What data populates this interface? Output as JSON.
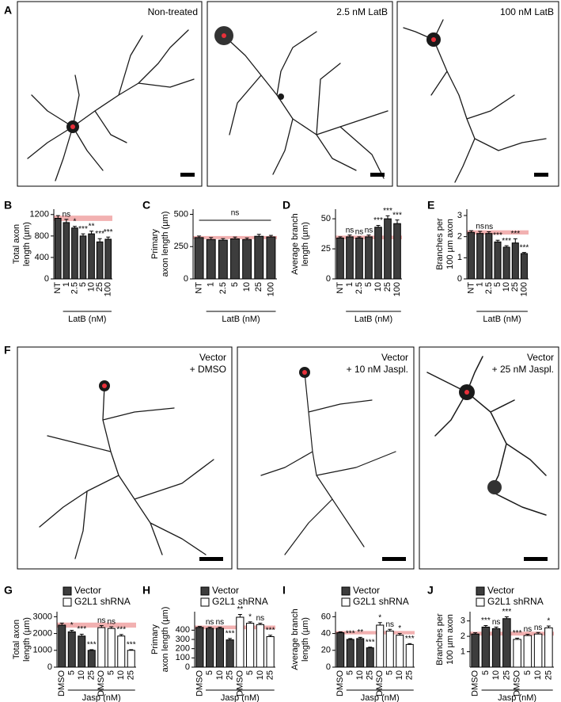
{
  "figure": {
    "A": {
      "label": "A",
      "images": [
        {
          "caption": "Non-treated"
        },
        {
          "caption": "2.5 nM LatB"
        },
        {
          "caption": "100 nM LatB"
        }
      ]
    },
    "F": {
      "label": "F",
      "images": [
        {
          "caption": [
            "Vector",
            "+ DMSO"
          ]
        },
        {
          "caption": [
            "Vector",
            "+ 10 nM Jaspl."
          ]
        },
        {
          "caption": [
            "Vector",
            "+ 25 nM Jaspl."
          ]
        }
      ]
    }
  },
  "chart_data": [
    {
      "panel": "B",
      "type": "bar",
      "ylabel": [
        "Total axon",
        "length (µm)"
      ],
      "xlabel": "LatB (nM)",
      "categories": [
        "NT",
        "1",
        "2.5",
        "5",
        "10",
        "25",
        "100"
      ],
      "values": [
        1130,
        1050,
        950,
        800,
        840,
        690,
        740
      ],
      "errors": [
        50,
        60,
        30,
        40,
        50,
        60,
        40
      ],
      "significance": [
        null,
        "ns",
        "*",
        "***",
        "**",
        "***",
        "***"
      ],
      "color": "#3d3d3d",
      "reference_band": [
        1080,
        1180
      ],
      "band_color": "#f0a3a3",
      "ylim": [
        0,
        1300
      ],
      "yticks": [
        0,
        400,
        800,
        1200
      ]
    },
    {
      "panel": "C",
      "type": "bar",
      "ylabel": [
        "Primary",
        "axon length (µm)"
      ],
      "xlabel": "LatB (nM)",
      "categories": [
        "NT",
        "1",
        "2.5",
        "5",
        "10",
        "25",
        "100"
      ],
      "values": [
        320,
        305,
        300,
        310,
        305,
        330,
        325
      ],
      "errors": [
        12,
        15,
        12,
        14,
        12,
        15,
        12
      ],
      "bracket_label": "ns",
      "color": "#3d3d3d",
      "reference_band": [
        308,
        332
      ],
      "band_color": "#f0a3a3",
      "ylim": [
        0,
        540
      ],
      "yticks": [
        0,
        250,
        500
      ]
    },
    {
      "panel": "D",
      "type": "bar",
      "ylabel": [
        "Average branch",
        "length (µm)"
      ],
      "xlabel": "LatB (nM)",
      "categories": [
        "NT",
        "1",
        "2.5",
        "5",
        "10",
        "25",
        "100"
      ],
      "values": [
        34,
        35,
        34,
        35,
        43,
        50,
        46
      ],
      "errors": [
        1,
        1.5,
        1,
        1.5,
        1.5,
        2.5,
        3
      ],
      "significance": [
        null,
        "ns",
        "ns",
        "ns",
        "***",
        "***",
        "***"
      ],
      "color": "#3d3d3d",
      "reference_band": [
        33,
        36
      ],
      "band_color": "#f0a3a3",
      "ylim": [
        0,
        58
      ],
      "yticks": [
        0,
        25,
        50
      ]
    },
    {
      "panel": "E",
      "type": "bar",
      "ylabel": [
        "Branches per",
        "100 µm axon"
      ],
      "xlabel": "LatB (nM)",
      "categories": [
        "NT",
        "1",
        "2.5",
        "5",
        "10",
        "25",
        "100"
      ],
      "values": [
        2.2,
        2.15,
        2.15,
        1.75,
        1.5,
        1.7,
        1.2
      ],
      "errors": [
        0.08,
        0.1,
        0.08,
        0.08,
        0.07,
        0.2,
        0.05
      ],
      "significance": [
        null,
        "ns",
        "ns",
        "***",
        "***",
        "***",
        "***"
      ],
      "color": "#3d3d3d",
      "reference_band": [
        2.1,
        2.3
      ],
      "band_color": "#f0a3a3",
      "ylim": [
        0,
        3.3
      ],
      "yticks": [
        0,
        1,
        2,
        3
      ]
    },
    {
      "panel": "G",
      "type": "bar",
      "ylabel": [
        "Total axon",
        "length (µm)"
      ],
      "xlabel": "Jasp (nM)",
      "categories": [
        "DMSO",
        "5",
        "10",
        "25",
        "DMSO",
        "5",
        "10",
        "25"
      ],
      "series": [
        {
          "name": "Vector",
          "color": "#3d3d3d",
          "values": [
            2500,
            2100,
            1850,
            1000,
            null,
            null,
            null,
            null
          ],
          "errors": [
            120,
            90,
            110,
            40,
            null,
            null,
            null,
            null
          ],
          "significance": [
            null,
            "*",
            "***",
            "***",
            null,
            null,
            null,
            null
          ]
        },
        {
          "name": "G2L1 shRNA",
          "color": "#ffffff",
          "values": [
            null,
            null,
            null,
            null,
            2350,
            2300,
            1850,
            1000
          ],
          "errors": [
            null,
            null,
            null,
            null,
            120,
            100,
            90,
            40
          ],
          "significance": [
            null,
            null,
            null,
            null,
            "ns",
            "ns",
            "***",
            "***"
          ]
        }
      ],
      "reference_band": [
        2350,
        2650
      ],
      "band_color": "#f0a3a3",
      "ylim": [
        0,
        3300
      ],
      "yticks": [
        0,
        1000,
        2000,
        3000
      ]
    },
    {
      "panel": "H",
      "type": "bar",
      "ylabel": [
        "Primary",
        "axon length (µm)"
      ],
      "xlabel": "Jasp (nM)",
      "categories": [
        "DMSO",
        "5",
        "10",
        "25",
        "DMSO",
        "5",
        "10",
        "25"
      ],
      "series": [
        {
          "name": "Vector",
          "color": "#3d3d3d",
          "values": [
            430,
            420,
            420,
            295,
            null,
            null,
            null,
            null
          ],
          "errors": [
            10,
            12,
            12,
            15,
            null,
            null,
            null,
            null
          ],
          "significance": [
            null,
            "ns",
            "ns",
            "***",
            null,
            null,
            null,
            null
          ]
        },
        {
          "name": "G2L1 shRNA",
          "color": "#ffffff",
          "values": [
            null,
            null,
            null,
            null,
            540,
            475,
            460,
            330
          ],
          "errors": [
            null,
            null,
            null,
            null,
            30,
            15,
            15,
            15
          ],
          "significance": [
            null,
            null,
            null,
            null,
            "**",
            "*",
            "ns",
            "***"
          ]
        }
      ],
      "reference_band": [
        410,
        450
      ],
      "band_color": "#f0a3a3",
      "ylim": [
        0,
        600
      ],
      "yticks": [
        0,
        100,
        200,
        300,
        400
      ]
    },
    {
      "panel": "I",
      "type": "bar",
      "ylabel": [
        "Average branch",
        "length (µm)"
      ],
      "xlabel": "Jasp (nM)",
      "categories": [
        "DMSO",
        "5",
        "10",
        "25",
        "DMSO",
        "5",
        "10",
        "25"
      ],
      "series": [
        {
          "name": "Vector",
          "color": "#3d3d3d",
          "values": [
            41,
            33,
            34,
            23,
            null,
            null,
            null,
            null
          ],
          "errors": [
            1,
            1,
            1.5,
            0.8,
            null,
            null,
            null,
            null
          ],
          "significance": [
            null,
            "***",
            "**",
            "***",
            null,
            null,
            null,
            null
          ]
        },
        {
          "name": "G2L1 shRNA",
          "color": "#ffffff",
          "values": [
            null,
            null,
            null,
            null,
            50,
            43,
            38,
            27
          ],
          "errors": [
            null,
            null,
            null,
            null,
            3,
            2,
            2,
            1
          ],
          "significance": [
            null,
            null,
            null,
            null,
            "*",
            "ns",
            "*",
            "***"
          ]
        }
      ],
      "reference_band": [
        39,
        43
      ],
      "band_color": "#f0a3a3",
      "ylim": [
        0,
        66
      ],
      "yticks": [
        0,
        20,
        40,
        60
      ]
    },
    {
      "panel": "J",
      "type": "bar",
      "ylabel": [
        "Branches per",
        "100 µm axon"
      ],
      "xlabel": "Jasp (nM)",
      "categories": [
        "DMSO",
        "5",
        "10",
        "25",
        "DMSO",
        "5",
        "10",
        "25"
      ],
      "series": [
        {
          "name": "Vector",
          "color": "#3d3d3d",
          "values": [
            2.15,
            2.6,
            2.5,
            3.15,
            null,
            null,
            null,
            null
          ],
          "errors": [
            0.08,
            0.1,
            0.1,
            0.12,
            null,
            null,
            null,
            null
          ],
          "significance": [
            null,
            "***",
            "ns",
            "***",
            null,
            null,
            null,
            null
          ]
        },
        {
          "name": "G2L1 shRNA",
          "color": "#ffffff",
          "values": [
            null,
            null,
            null,
            null,
            1.8,
            2.05,
            2.15,
            2.55
          ],
          "errors": [
            null,
            null,
            null,
            null,
            0.08,
            0.08,
            0.1,
            0.12
          ],
          "significance": [
            null,
            null,
            null,
            null,
            "***",
            "ns",
            "ns",
            "*"
          ]
        }
      ],
      "reference_band": [
        2.05,
        2.3
      ],
      "band_color": "#f0a3a3",
      "ylim": [
        0,
        3.6
      ],
      "yticks": [
        1,
        2,
        3
      ]
    }
  ]
}
